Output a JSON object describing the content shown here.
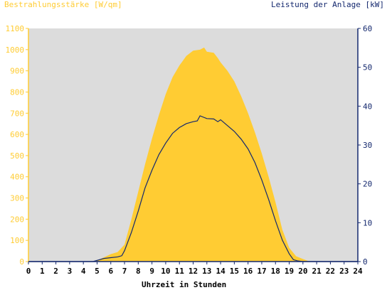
{
  "chart_data": {
    "type": "area",
    "title_left": "Bestrahlungsstärke [W/qm]",
    "title_right": "Leistung der Anlage [kW]",
    "xlabel": "Uhrzeit in Stunden",
    "x_ticks": [
      0,
      1,
      2,
      3,
      4,
      5,
      6,
      7,
      8,
      9,
      10,
      11,
      12,
      13,
      14,
      15,
      16,
      17,
      18,
      19,
      20,
      21,
      22,
      23,
      24
    ],
    "y_left": {
      "min": 0,
      "max": 1100,
      "ticks": [
        0,
        100,
        200,
        300,
        400,
        500,
        600,
        700,
        800,
        900,
        1000,
        1100
      ]
    },
    "y_right": {
      "min": 0,
      "max": 60,
      "ticks": [
        0,
        10,
        20,
        30,
        40,
        50,
        60
      ]
    },
    "grid": false,
    "colors": {
      "plot_bg": "#dcdcdc",
      "irradiance": "#ffcc33",
      "power": "#14286e",
      "left_axis": "#ffcc33",
      "right_axis": "#14286e"
    },
    "series": [
      {
        "name": "Bestrahlungsstärke [W/qm]",
        "axis": "left",
        "type": "area",
        "x": [
          0,
          4.7,
          5.0,
          5.5,
          6.0,
          6.5,
          7.0,
          7.5,
          8.0,
          8.5,
          9.0,
          9.5,
          10.0,
          10.5,
          11.0,
          11.5,
          12.0,
          12.5,
          12.8,
          13.0,
          13.5,
          13.8,
          14.0,
          14.5,
          15.0,
          15.5,
          16.0,
          16.5,
          17.0,
          17.5,
          18.0,
          18.5,
          19.0,
          19.5,
          20.0,
          20.5,
          24
        ],
        "values": [
          0,
          0,
          5,
          20,
          35,
          45,
          80,
          200,
          330,
          460,
          580,
          690,
          790,
          870,
          925,
          970,
          995,
          1000,
          1010,
          990,
          985,
          960,
          940,
          900,
          850,
          780,
          700,
          610,
          510,
          400,
          280,
          150,
          65,
          25,
          12,
          0,
          0
        ]
      },
      {
        "name": "Leistung der Anlage [kW]",
        "axis": "right",
        "type": "line",
        "x": [
          0,
          4.7,
          5.0,
          5.5,
          6.0,
          6.5,
          6.8,
          7.0,
          7.5,
          8.0,
          8.5,
          9.0,
          9.5,
          10.0,
          10.5,
          11.0,
          11.5,
          12.0,
          12.3,
          12.5,
          13.0,
          13.5,
          13.8,
          14.0,
          14.5,
          15.0,
          15.5,
          16.0,
          16.5,
          17.0,
          17.5,
          18.0,
          18.5,
          19.0,
          19.3,
          19.6,
          20.0,
          24
        ],
        "values": [
          0,
          0,
          0.3,
          0.8,
          1,
          1.2,
          1.5,
          2.8,
          7.5,
          13,
          19,
          23.5,
          27.5,
          30.5,
          33,
          34.5,
          35.5,
          36,
          36.2,
          37.5,
          36.8,
          36.7,
          36,
          36.5,
          35,
          33.5,
          31.5,
          29,
          25.5,
          21,
          16,
          10.5,
          5.5,
          2,
          0.5,
          0.2,
          0,
          0
        ]
      }
    ]
  }
}
